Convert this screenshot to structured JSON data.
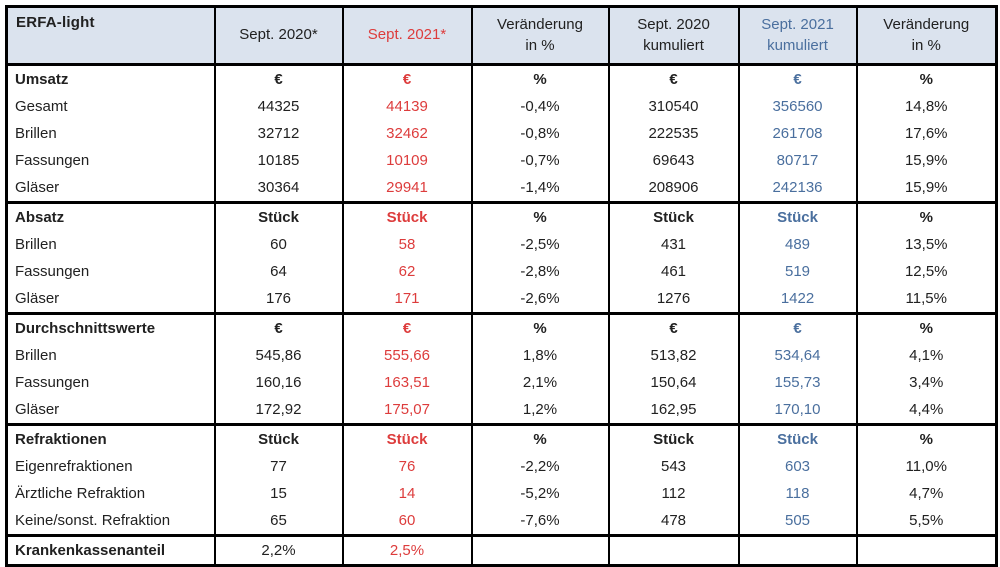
{
  "colors": {
    "red": "#dd3c3c",
    "blue": "#4a6f9e",
    "header_bg": "#dbe3ee",
    "text": "#212121",
    "border": "#000000"
  },
  "header": {
    "title": "ERFA-light",
    "columns": [
      {
        "label": "Sept. 2020*",
        "color": "black"
      },
      {
        "label": "Sept. 2021*",
        "color": "red"
      },
      {
        "label": "Veränderung\nin %",
        "color": "black"
      },
      {
        "label": "Sept. 2020\nkumuliert",
        "color": "black"
      },
      {
        "label": "Sept. 2021\nkumuliert",
        "color": "blue"
      },
      {
        "label": "Veränderung\nin %",
        "color": "black"
      }
    ]
  },
  "sections": [
    {
      "name": "Umsatz",
      "rows": [
        {
          "label": "Umsatz",
          "unit": true,
          "cells": [
            "€",
            "€",
            "%",
            "€",
            "€",
            "%"
          ]
        },
        {
          "label": "Gesamt",
          "cells": [
            "44325",
            "44139",
            "-0,4%",
            "310540",
            "356560",
            "14,8%"
          ]
        },
        {
          "label": "Brillen",
          "cells": [
            "32712",
            "32462",
            "-0,8%",
            "222535",
            "261708",
            "17,6%"
          ]
        },
        {
          "label": "Fassungen",
          "cells": [
            "10185",
            "10109",
            "-0,7%",
            "69643",
            "80717",
            "15,9%"
          ]
        },
        {
          "label": "Gläser",
          "cells": [
            "30364",
            "29941",
            "-1,4%",
            "208906",
            "242136",
            "15,9%"
          ]
        }
      ]
    },
    {
      "name": "Absatz",
      "rows": [
        {
          "label": "Absatz",
          "unit": true,
          "cells": [
            "Stück",
            "Stück",
            "%",
            "Stück",
            "Stück",
            "%"
          ]
        },
        {
          "label": "Brillen",
          "cells": [
            "60",
            "58",
            "-2,5%",
            "431",
            "489",
            "13,5%"
          ]
        },
        {
          "label": "Fassungen",
          "cells": [
            "64",
            "62",
            "-2,8%",
            "461",
            "519",
            "12,5%"
          ]
        },
        {
          "label": "Gläser",
          "cells": [
            "176",
            "171",
            "-2,6%",
            "1276",
            "1422",
            "11,5%"
          ]
        }
      ]
    },
    {
      "name": "Durchschnittswerte",
      "rows": [
        {
          "label": "Durchschnittswerte",
          "unit": true,
          "cells": [
            "€",
            "€",
            "%",
            "€",
            "€",
            "%"
          ]
        },
        {
          "label": "Brillen",
          "cells": [
            "545,86",
            "555,66",
            "1,8%",
            "513,82",
            "534,64",
            "4,1%"
          ]
        },
        {
          "label": "Fassungen",
          "cells": [
            "160,16",
            "163,51",
            "2,1%",
            "150,64",
            "155,73",
            "3,4%"
          ]
        },
        {
          "label": "Gläser",
          "cells": [
            "172,92",
            "175,07",
            "1,2%",
            "162,95",
            "170,10",
            "4,4%"
          ]
        }
      ]
    },
    {
      "name": "Refraktionen",
      "rows": [
        {
          "label": "Refraktionen",
          "unit": true,
          "cells": [
            "Stück",
            "Stück",
            "%",
            "Stück",
            "Stück",
            "%"
          ]
        },
        {
          "label": "Eigenrefraktionen",
          "cells": [
            "77",
            "76",
            "-2,2%",
            "543",
            "603",
            "11,0%"
          ]
        },
        {
          "label": "Ärztliche Refraktion",
          "cells": [
            "15",
            "14",
            "-5,2%",
            "112",
            "118",
            "4,7%"
          ]
        },
        {
          "label": "Keine/sonst. Refraktion",
          "cells": [
            "65",
            "60",
            "-7,6%",
            "478",
            "505",
            "5,5%"
          ]
        }
      ]
    },
    {
      "name": "Krankenkassenanteil",
      "rows": [
        {
          "label": "Krankenkassenanteil",
          "cells": [
            "2,2%",
            "2,5%",
            "",
            "",
            "",
            ""
          ]
        }
      ]
    }
  ]
}
